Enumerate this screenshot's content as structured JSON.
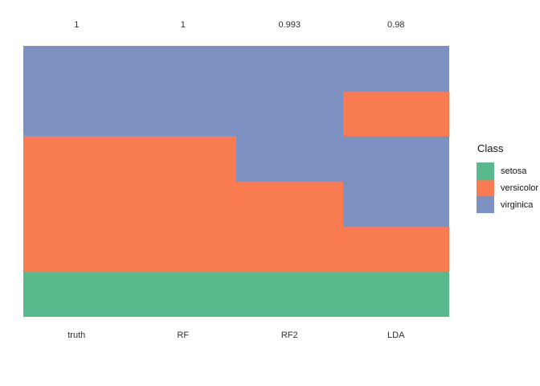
{
  "figure": {
    "background": "#ffffff",
    "text_color_axis": "#2e2e2e",
    "text_color_legend": "#141414",
    "legend": {
      "title": "Class",
      "items": [
        {
          "label": "setosa",
          "class": "setosa"
        },
        {
          "label": "versicolor",
          "class": "versicolor"
        },
        {
          "label": "virginica",
          "class": "virginica"
        }
      ]
    },
    "colors": {
      "setosa": "#57B98C",
      "versicolor": "#F87B52",
      "virginica": "#7D90C2"
    }
  },
  "chart_data": {
    "type": "heatmap",
    "title": "",
    "xlabel": "",
    "ylabel": "",
    "legend_title": "Class",
    "legend_position": "right",
    "grid": false,
    "classes": [
      "setosa",
      "versicolor",
      "virginica"
    ],
    "description": "Each column shows predicted class composition (top to bottom fraction of samples) for a classifier; number above each column is its accuracy.",
    "columns": [
      {
        "label": "truth",
        "accuracy": "1",
        "segments": [
          {
            "class": "virginica",
            "fraction": 0.332
          },
          {
            "class": "versicolor",
            "fraction": 0.502
          },
          {
            "class": "setosa",
            "fraction": 0.166
          }
        ]
      },
      {
        "label": "RF",
        "accuracy": "1",
        "segments": [
          {
            "class": "virginica",
            "fraction": 0.332
          },
          {
            "class": "versicolor",
            "fraction": 0.502
          },
          {
            "class": "setosa",
            "fraction": 0.166
          }
        ]
      },
      {
        "label": "RF2",
        "accuracy": "0.993",
        "segments": [
          {
            "class": "virginica",
            "fraction": 0.502
          },
          {
            "class": "versicolor",
            "fraction": 0.332
          },
          {
            "class": "setosa",
            "fraction": 0.166
          }
        ]
      },
      {
        "label": "LDA",
        "accuracy": "0.98",
        "segments": [
          {
            "class": "virginica",
            "fraction": 0.169
          },
          {
            "class": "versicolor",
            "fraction": 0.163
          },
          {
            "class": "virginica",
            "fraction": 0.336
          },
          {
            "class": "versicolor",
            "fraction": 0.166
          },
          {
            "class": "setosa",
            "fraction": 0.166
          }
        ]
      }
    ]
  }
}
